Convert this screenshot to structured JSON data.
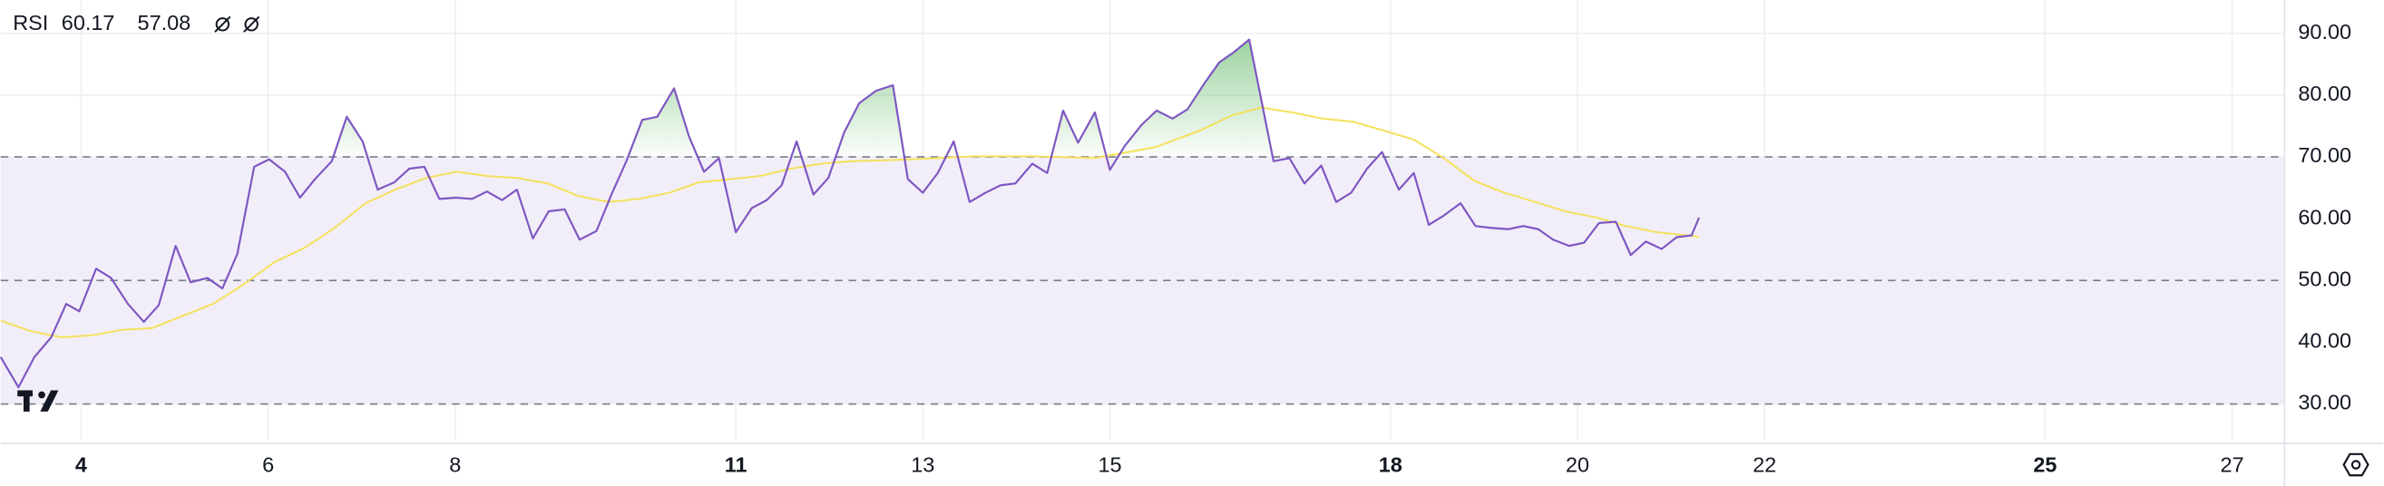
{
  "chart_data": {
    "type": "line",
    "indicator": "RSI",
    "xlim": [
      3.14,
      27.56
    ],
    "ylim": [
      24.1,
      95.4
    ],
    "xticks": [
      4,
      6,
      8,
      11,
      13,
      15,
      18,
      20,
      22,
      25,
      27
    ],
    "bold_xticks": [
      4,
      11,
      18,
      25
    ],
    "yticks": [
      {
        "value": 30,
        "label": "30.00"
      },
      {
        "value": 40,
        "label": "40.00"
      },
      {
        "value": 50,
        "label": "50.00"
      },
      {
        "value": 60,
        "label": "60.00"
      },
      {
        "value": 70,
        "label": "70.00"
      },
      {
        "value": 80,
        "label": "80.00"
      },
      {
        "value": 90,
        "label": "90.00"
      }
    ],
    "levels": [
      30,
      50,
      70
    ],
    "band": [
      30,
      70
    ],
    "band_color": "#7e57c2",
    "overbought_color": "#4caf50",
    "grid": true,
    "series": [
      {
        "color": "#7e57c2",
        "x": [
          3.14,
          3.33,
          3.5,
          3.68,
          3.84,
          3.98,
          4.16,
          4.32,
          4.5,
          4.67,
          4.83,
          5.01,
          5.17,
          5.35,
          5.51,
          5.67,
          5.85,
          6.01,
          6.18,
          6.34,
          6.5,
          6.68,
          6.84,
          7.01,
          7.17,
          7.35,
          7.51,
          7.67,
          7.83,
          8.01,
          8.18,
          8.34,
          8.5,
          8.66,
          8.83,
          9.0,
          9.17,
          9.33,
          9.51,
          9.67,
          9.83,
          10.0,
          10.16,
          10.34,
          10.5,
          10.66,
          10.82,
          11.0,
          11.17,
          11.33,
          11.49,
          11.65,
          11.83,
          11.99,
          12.16,
          12.32,
          12.5,
          12.68,
          12.84,
          13.0,
          13.16,
          13.33,
          13.5,
          13.67,
          13.83,
          13.99,
          14.17,
          14.33,
          14.5,
          14.66,
          14.84,
          15.0,
          15.16,
          15.34,
          15.5,
          15.67,
          15.83,
          16.01,
          16.17,
          16.33,
          16.49,
          16.75,
          16.92,
          17.08,
          17.26,
          17.42,
          17.58,
          17.75,
          17.91,
          18.09,
          18.25,
          18.41,
          18.57,
          18.75,
          18.91,
          19.08,
          19.26,
          19.42,
          19.58,
          19.74,
          19.91,
          20.07,
          20.23,
          20.41,
          20.57,
          20.73,
          20.9,
          21.06,
          21.22,
          21.3
        ],
        "values": [
          37.6,
          32.7,
          37.6,
          40.8,
          46.2,
          45.0,
          51.9,
          50.4,
          46.2,
          43.3,
          46.0,
          55.6,
          49.7,
          50.4,
          48.7,
          54.3,
          68.4,
          69.6,
          67.6,
          63.4,
          66.4,
          69.3,
          76.5,
          72.5,
          64.7,
          65.9,
          68.1,
          68.4,
          63.2,
          63.4,
          63.2,
          64.4,
          63.0,
          64.7,
          56.8,
          61.2,
          61.5,
          56.6,
          58.0,
          63.9,
          69.3,
          76.0,
          76.5,
          81.1,
          73.3,
          67.6,
          69.8,
          57.8,
          61.7,
          63.0,
          65.4,
          72.5,
          63.9,
          66.6,
          74.0,
          78.7,
          80.7,
          81.6,
          66.4,
          64.2,
          67.4,
          72.5,
          62.7,
          64.2,
          65.4,
          65.7,
          68.9,
          67.4,
          77.5,
          72.3,
          77.2,
          67.9,
          71.8,
          75.2,
          77.5,
          76.2,
          77.7,
          81.9,
          85.3,
          87.0,
          89.0,
          69.3,
          69.8,
          65.7,
          68.6,
          62.7,
          64.2,
          68.1,
          70.8,
          64.7,
          67.4,
          59.0,
          60.5,
          62.5,
          58.8,
          58.5,
          58.3,
          58.8,
          58.3,
          56.6,
          55.6,
          56.1,
          59.3,
          59.5,
          54.1,
          56.3,
          55.1,
          57.0,
          57.3,
          60.17
        ]
      },
      {
        "color": "#f5e15c",
        "x": [
          3.14,
          3.46,
          3.79,
          4.11,
          4.44,
          4.76,
          5.09,
          5.41,
          5.74,
          6.06,
          6.39,
          6.71,
          7.04,
          7.36,
          7.69,
          8.01,
          8.34,
          8.66,
          8.99,
          9.31,
          9.64,
          9.96,
          10.29,
          10.61,
          10.94,
          11.26,
          11.59,
          11.91,
          12.24,
          12.89,
          13.54,
          14.19,
          14.84,
          15.49,
          15.97,
          16.3,
          16.62,
          16.95,
          17.27,
          17.6,
          17.92,
          18.25,
          18.57,
          18.9,
          19.22,
          19.55,
          19.87,
          20.2,
          20.52,
          20.85,
          21.3
        ],
        "values": [
          43.5,
          41.8,
          40.8,
          41.1,
          42.0,
          42.3,
          44.3,
          46.2,
          49.4,
          52.9,
          55.3,
          58.5,
          62.5,
          64.7,
          66.6,
          67.6,
          66.9,
          66.6,
          65.7,
          63.7,
          62.7,
          63.2,
          64.2,
          65.9,
          66.4,
          66.9,
          68.1,
          68.9,
          69.3,
          69.6,
          70.1,
          70.1,
          69.8,
          71.6,
          74.3,
          76.7,
          78.0,
          77.2,
          76.2,
          75.7,
          74.3,
          72.8,
          69.8,
          66.1,
          64.2,
          62.7,
          61.2,
          60.2,
          58.8,
          57.8,
          57.08
        ]
      }
    ]
  }
}
